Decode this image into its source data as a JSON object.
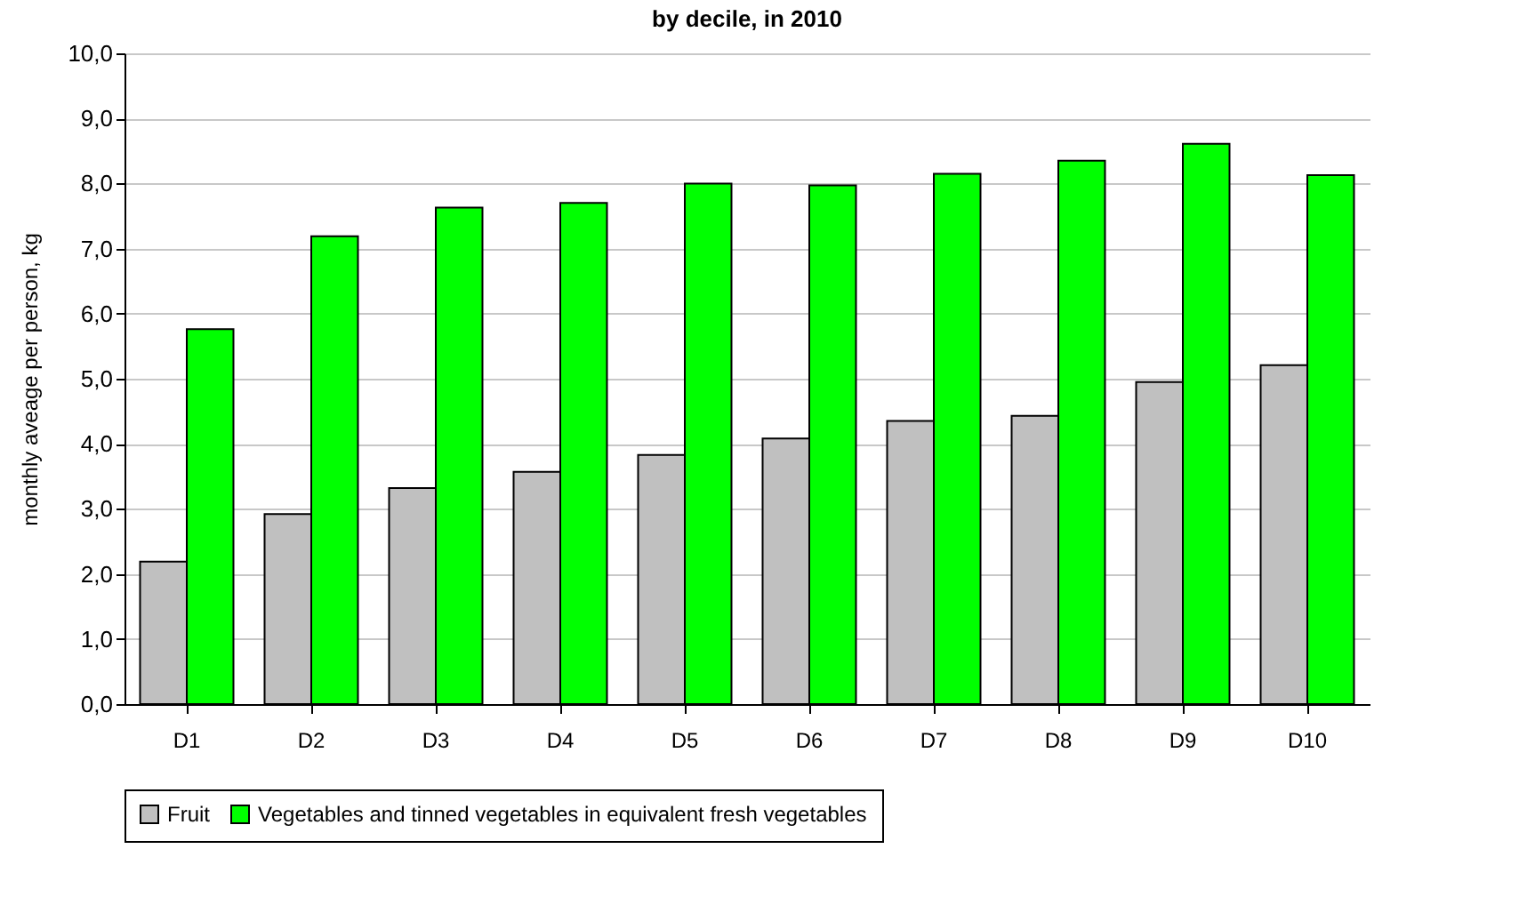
{
  "chart_data": {
    "type": "bar",
    "title": "by decile, in 2010",
    "ylabel": "monthly aveage per person, kg",
    "categories": [
      "D1",
      "D2",
      "D3",
      "D4",
      "D5",
      "D6",
      "D7",
      "D8",
      "D9",
      "D10"
    ],
    "series": [
      {
        "name": "Fruit",
        "color": "#c0c0c0",
        "values": [
          2.19,
          2.92,
          3.32,
          3.57,
          3.83,
          4.08,
          4.35,
          4.43,
          4.95,
          5.21
        ]
      },
      {
        "name": "Vegetables and tinned vegetables in equivalent fresh vegetables",
        "color": "#00ff00",
        "values": [
          5.76,
          7.19,
          7.63,
          7.7,
          8.0,
          7.97,
          8.15,
          8.35,
          8.61,
          8.13
        ]
      }
    ],
    "ylim": [
      0,
      10
    ],
    "yticks": [
      {
        "value": 0,
        "label": "0,0"
      },
      {
        "value": 1,
        "label": "1,0"
      },
      {
        "value": 2,
        "label": "2,0"
      },
      {
        "value": 3,
        "label": "3,0"
      },
      {
        "value": 4,
        "label": "4,0"
      },
      {
        "value": 5,
        "label": "5,0"
      },
      {
        "value": 6,
        "label": "6,0"
      },
      {
        "value": 7,
        "label": "7,0"
      },
      {
        "value": 8,
        "label": "8,0"
      },
      {
        "value": 9,
        "label": "9,0"
      },
      {
        "value": 10,
        "label": "10,0"
      }
    ],
    "grid": "y",
    "legend": "bottom"
  }
}
